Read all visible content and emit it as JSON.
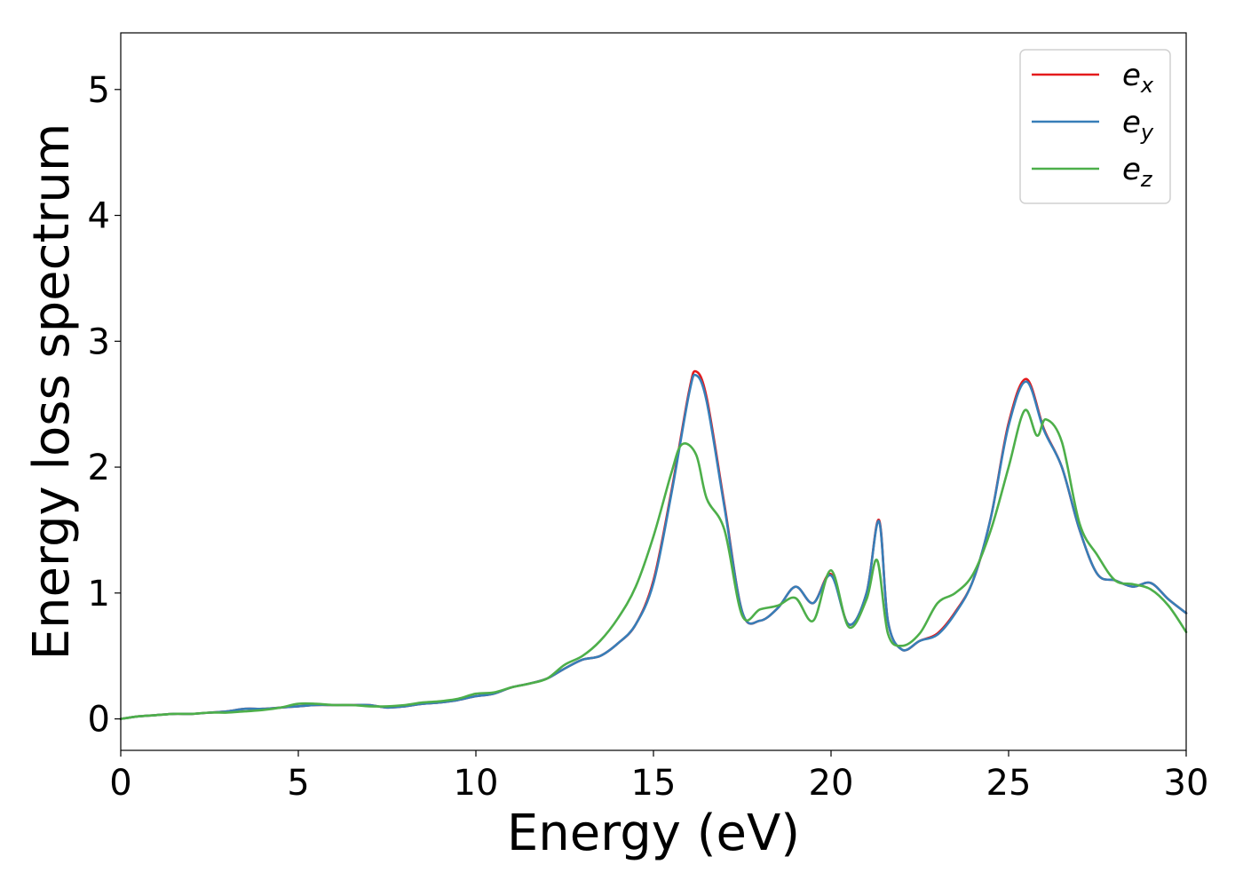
{
  "chart_data": {
    "type": "line",
    "title": "",
    "xlabel": "Energy (eV)",
    "ylabel": "Energy loss spectrum",
    "xlim": [
      0,
      30
    ],
    "ylim": [
      -0.25,
      5.45
    ],
    "xticks": [
      0,
      5,
      10,
      15,
      20,
      25,
      30
    ],
    "yticks": [
      0,
      1,
      2,
      3,
      4,
      5
    ],
    "grid": false,
    "legend_position": "top-right",
    "series": [
      {
        "name": "e_x",
        "label_base": "e",
        "label_sub": "x",
        "color": "#e41a1c",
        "x": [
          0,
          0.5,
          1,
          1.5,
          2,
          2.5,
          3,
          3.5,
          4,
          4.5,
          5,
          5.5,
          6,
          6.5,
          7,
          7.5,
          8,
          8.5,
          9,
          9.5,
          10,
          10.5,
          11,
          11.5,
          12,
          12.5,
          13,
          13.5,
          14,
          14.5,
          15,
          15.5,
          16,
          16.2,
          16.5,
          17,
          17.5,
          18,
          18.5,
          19,
          19.5,
          20,
          20.5,
          21,
          21.35,
          21.6,
          22,
          22.5,
          23,
          23.5,
          24,
          24.5,
          25,
          25.5,
          26,
          26.5,
          27,
          27.5,
          28,
          28.5,
          29,
          29.5,
          30
        ],
        "y": [
          0.0,
          0.02,
          0.03,
          0.04,
          0.04,
          0.05,
          0.06,
          0.08,
          0.08,
          0.09,
          0.1,
          0.11,
          0.11,
          0.11,
          0.11,
          0.09,
          0.1,
          0.12,
          0.13,
          0.15,
          0.18,
          0.2,
          0.25,
          0.28,
          0.32,
          0.4,
          0.47,
          0.5,
          0.6,
          0.75,
          1.1,
          1.8,
          2.6,
          2.76,
          2.55,
          1.7,
          0.85,
          0.78,
          0.88,
          1.05,
          0.92,
          1.15,
          0.75,
          1.0,
          1.58,
          0.78,
          0.55,
          0.62,
          0.68,
          0.85,
          1.1,
          1.6,
          2.35,
          2.7,
          2.3,
          2.0,
          1.5,
          1.15,
          1.1,
          1.05,
          1.08,
          0.95,
          0.84
        ]
      },
      {
        "name": "e_y",
        "label_base": "e",
        "label_sub": "y",
        "color": "#377eb8",
        "x": [
          0,
          0.5,
          1,
          1.5,
          2,
          2.5,
          3,
          3.5,
          4,
          4.5,
          5,
          5.5,
          6,
          6.5,
          7,
          7.5,
          8,
          8.5,
          9,
          9.5,
          10,
          10.5,
          11,
          11.5,
          12,
          12.5,
          13,
          13.5,
          14,
          14.5,
          15,
          15.5,
          16,
          16.2,
          16.5,
          17,
          17.5,
          18,
          18.5,
          19,
          19.5,
          20,
          20.5,
          21,
          21.35,
          21.6,
          22,
          22.5,
          23,
          23.5,
          24,
          24.5,
          25,
          25.5,
          26,
          26.5,
          27,
          27.5,
          28,
          28.5,
          29,
          29.5,
          30
        ],
        "y": [
          0.0,
          0.02,
          0.03,
          0.04,
          0.04,
          0.05,
          0.06,
          0.08,
          0.08,
          0.09,
          0.1,
          0.11,
          0.11,
          0.11,
          0.11,
          0.09,
          0.1,
          0.12,
          0.13,
          0.15,
          0.18,
          0.2,
          0.25,
          0.28,
          0.32,
          0.4,
          0.47,
          0.5,
          0.6,
          0.75,
          1.08,
          1.78,
          2.58,
          2.73,
          2.52,
          1.68,
          0.85,
          0.78,
          0.88,
          1.05,
          0.92,
          1.14,
          0.75,
          1.0,
          1.57,
          0.78,
          0.55,
          0.62,
          0.67,
          0.84,
          1.1,
          1.6,
          2.33,
          2.68,
          2.29,
          2.0,
          1.5,
          1.15,
          1.1,
          1.05,
          1.08,
          0.95,
          0.84
        ]
      },
      {
        "name": "e_z",
        "label_base": "e",
        "label_sub": "z",
        "color": "#4daf4a",
        "x": [
          0,
          0.5,
          1,
          1.5,
          2,
          2.5,
          3,
          3.5,
          4,
          4.5,
          5,
          5.5,
          6,
          6.5,
          7,
          7.5,
          8,
          8.5,
          9,
          9.5,
          10,
          10.5,
          11,
          11.5,
          12,
          12.5,
          13,
          13.5,
          14,
          14.5,
          15,
          15.5,
          15.8,
          16.2,
          16.5,
          17,
          17.5,
          18,
          18.5,
          19,
          19.5,
          20,
          20.5,
          21,
          21.3,
          21.6,
          22,
          22.5,
          23,
          23.5,
          24,
          24.5,
          25,
          25.45,
          25.8,
          26.05,
          26.5,
          27,
          27.5,
          28,
          28.5,
          29,
          29.5,
          30
        ],
        "y": [
          0.0,
          0.02,
          0.03,
          0.04,
          0.04,
          0.05,
          0.05,
          0.06,
          0.07,
          0.09,
          0.12,
          0.12,
          0.11,
          0.11,
          0.1,
          0.1,
          0.11,
          0.13,
          0.14,
          0.16,
          0.2,
          0.21,
          0.25,
          0.28,
          0.32,
          0.43,
          0.5,
          0.62,
          0.8,
          1.05,
          1.45,
          1.95,
          2.18,
          2.1,
          1.75,
          1.5,
          0.82,
          0.87,
          0.9,
          0.96,
          0.78,
          1.18,
          0.73,
          0.95,
          1.26,
          0.68,
          0.58,
          0.68,
          0.92,
          1.0,
          1.15,
          1.5,
          2.0,
          2.45,
          2.25,
          2.38,
          2.2,
          1.55,
          1.3,
          1.1,
          1.07,
          1.03,
          0.9,
          0.69
        ]
      }
    ]
  }
}
